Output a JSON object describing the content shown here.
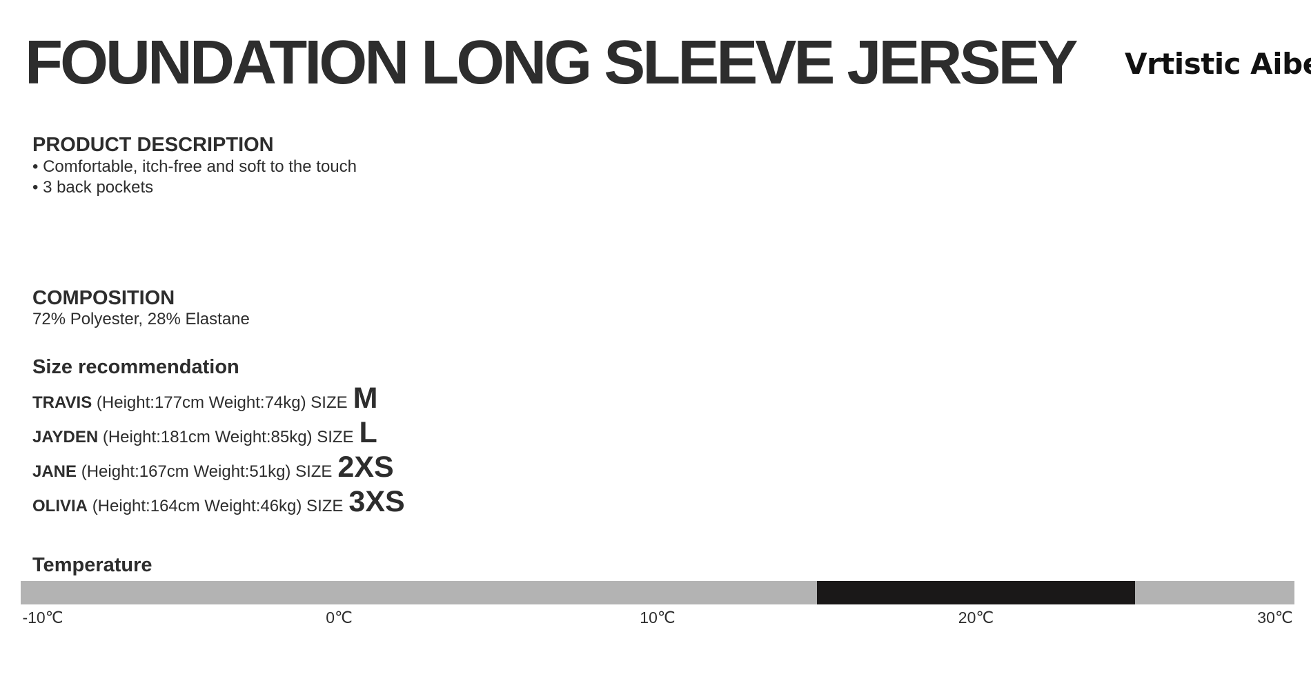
{
  "title": "FOUNDATION LONG SLEEVE JERSEY",
  "logo": {
    "text": "Vrtistic Aibe",
    "mark": "®"
  },
  "product_description": {
    "heading": "PRODUCT DESCRIPTION",
    "bullets": [
      "• Comfortable, itch-free and soft to the touch",
      "• 3 back pockets"
    ]
  },
  "composition": {
    "heading": "COMPOSITION",
    "text": "72% Polyester, 28% Elastane"
  },
  "size_recommendation": {
    "heading": "Size recommendation",
    "rows": [
      {
        "name": "TRAVIS",
        "details": "(Height:177cm Weight:74kg) SIZE",
        "size": "M"
      },
      {
        "name": "JAYDEN",
        "details": "(Height:181cm Weight:85kg) SIZE",
        "size": "L"
      },
      {
        "name": "JANE",
        "details": "(Height:167cm Weight:51kg) SIZE",
        "size": "2XS"
      },
      {
        "name": "OLIVIA",
        "details": "(Height:164cm Weight:46kg) SIZE",
        "size": "3XS"
      }
    ]
  },
  "temperature": {
    "heading": "Temperature",
    "scale_min": -10,
    "scale_max": 30,
    "range_min": 15,
    "range_max": 25,
    "ticks": [
      "-10℃",
      "0℃",
      "10℃",
      "20℃",
      "30℃"
    ],
    "colors": {
      "track": "#b3b3b3",
      "range": "#1a1818"
    }
  }
}
